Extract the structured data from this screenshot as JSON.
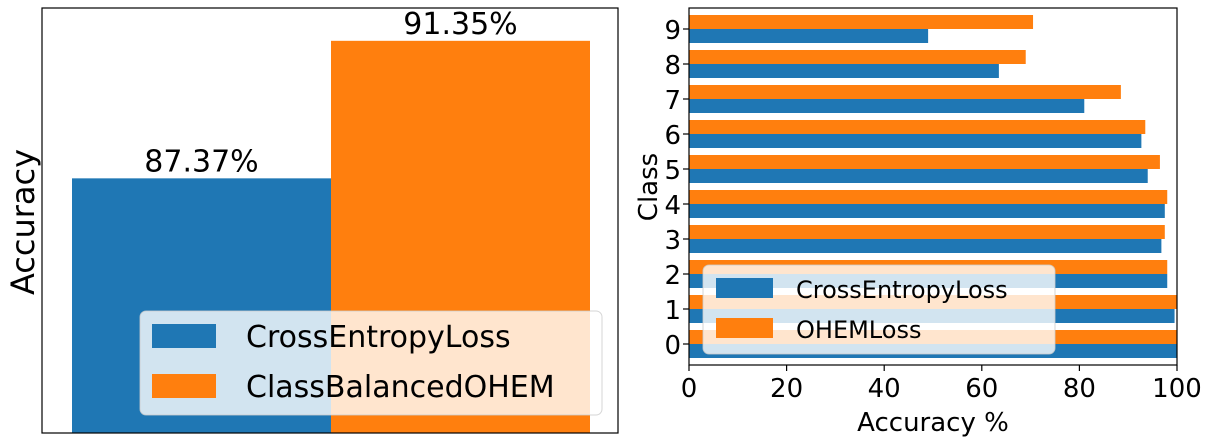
{
  "colors": {
    "blue": "#1f77b4",
    "orange": "#ff7f0e"
  },
  "chart_data": [
    {
      "type": "bar",
      "ylabel": "Accuracy",
      "ylim": [
        80,
        92.3
      ],
      "series": [
        {
          "name": "CrossEntropyLoss",
          "value": 87.37,
          "label": "87.37%"
        },
        {
          "name": "ClassBalancedOHEM",
          "value": 91.35,
          "label": "91.35%"
        }
      ],
      "legend": {
        "position": "lower-right",
        "entries": [
          "CrossEntropyLoss",
          "ClassBalancedOHEM"
        ]
      }
    },
    {
      "type": "bar",
      "orientation": "horizontal",
      "xlabel": "Accuracy %",
      "ylabel": "Class",
      "xlim": [
        0,
        100
      ],
      "xticks": [
        "0",
        "20",
        "40",
        "60",
        "80",
        "100"
      ],
      "categories": [
        "0",
        "1",
        "2",
        "3",
        "4",
        "5",
        "6",
        "7",
        "8",
        "9"
      ],
      "series": [
        {
          "name": "CrossEntropyLoss",
          "values": [
            100,
            99.5,
            98,
            96.8,
            97.5,
            94,
            92.7,
            81,
            63.5,
            49
          ]
        },
        {
          "name": "OHEMLoss",
          "values": [
            100,
            100,
            98,
            97.5,
            98,
            96.5,
            93.5,
            88.5,
            69,
            70.5
          ]
        }
      ],
      "legend": {
        "position": "lower-left",
        "entries": [
          "CrossEntropyLoss",
          "OHEMLoss"
        ]
      }
    }
  ]
}
